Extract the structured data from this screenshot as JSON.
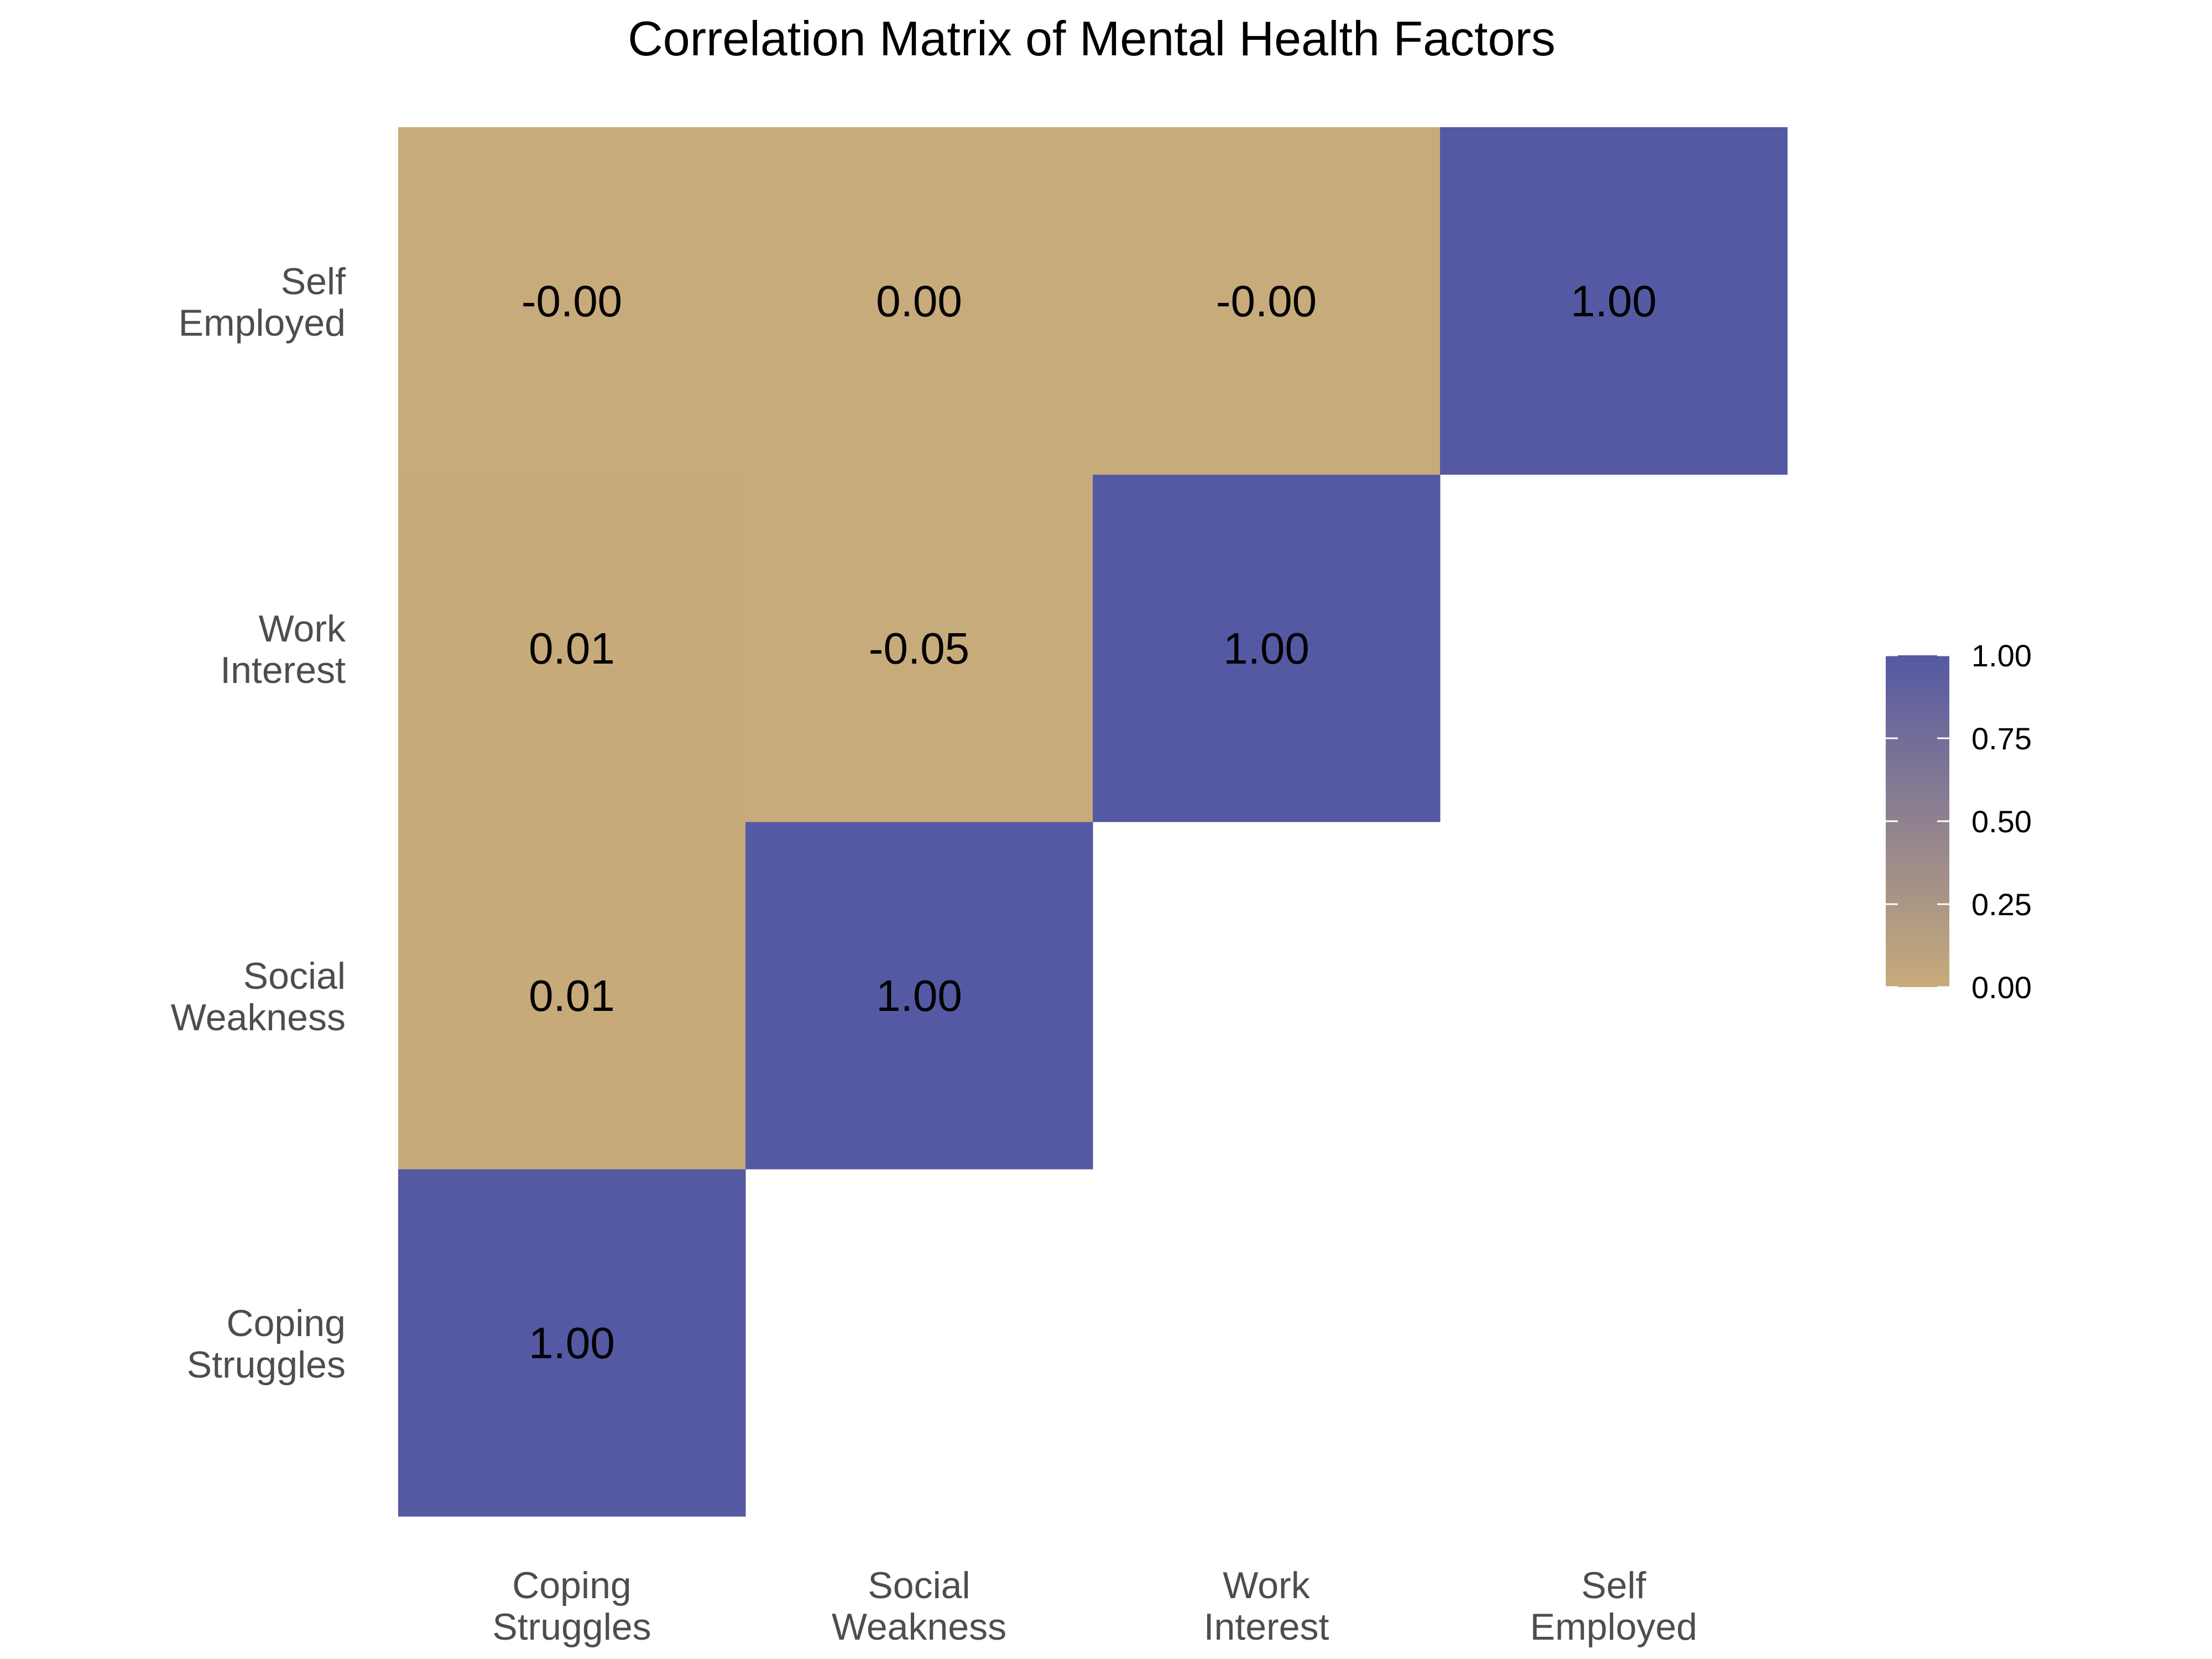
{
  "chart_data": {
    "type": "heatmap",
    "title": "Correlation Matrix of Mental Health Factors",
    "xlabel": "",
    "ylabel": "",
    "variables": [
      [
        "Coping",
        "Struggles"
      ],
      [
        "Social",
        "Weakness"
      ],
      [
        "Work",
        "Interest"
      ],
      [
        "Self",
        "Employed"
      ]
    ],
    "cells": [
      {
        "row": 0,
        "col": 0,
        "value": 1.0,
        "label": "1.00"
      },
      {
        "row": 1,
        "col": 0,
        "value": 0.01,
        "label": "0.01"
      },
      {
        "row": 1,
        "col": 1,
        "value": 1.0,
        "label": "1.00"
      },
      {
        "row": 2,
        "col": 0,
        "value": 0.01,
        "label": "0.01"
      },
      {
        "row": 2,
        "col": 1,
        "value": -0.05,
        "label": "-0.05"
      },
      {
        "row": 2,
        "col": 2,
        "value": 1.0,
        "label": "1.00"
      },
      {
        "row": 3,
        "col": 0,
        "value": -0.0,
        "label": "-0.00"
      },
      {
        "row": 3,
        "col": 1,
        "value": 0.0,
        "label": "0.00"
      },
      {
        "row": 3,
        "col": 2,
        "value": -0.0,
        "label": "-0.00"
      },
      {
        "row": 3,
        "col": 3,
        "value": 1.0,
        "label": "1.00"
      }
    ],
    "legend": {
      "placement": "right",
      "range": [
        0,
        1
      ],
      "ticks": [
        1.0,
        0.75,
        0.5,
        0.25,
        0.0
      ],
      "tick_labels": [
        "1.00",
        "0.75",
        "0.50",
        "0.25",
        "0.00"
      ]
    },
    "colors": {
      "low": "#C8AB7A",
      "high": "#5559A3",
      "title": "#000000",
      "axis_text": "#4D4D4D",
      "cell_text": "#000000"
    }
  }
}
